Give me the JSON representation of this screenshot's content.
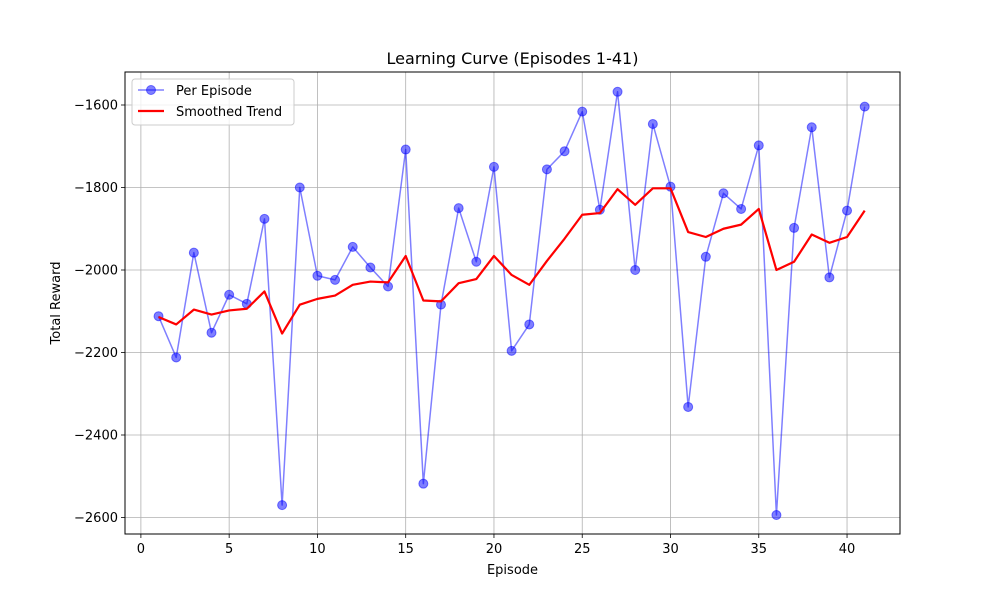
{
  "chart_data": {
    "type": "line",
    "title": "Learning Curve (Episodes 1-41)",
    "xlabel": "Episode",
    "ylabel": "Total Reward",
    "xlim": [
      -0.9,
      43.0
    ],
    "ylim": [
      -2640,
      -1520
    ],
    "xticks": [
      0,
      5,
      10,
      15,
      20,
      25,
      30,
      35,
      40
    ],
    "yticks": [
      -2600,
      -2400,
      -2200,
      -2000,
      -1800,
      -1600
    ],
    "grid": true,
    "legend_position": "top-left",
    "x": [
      1,
      2,
      3,
      4,
      5,
      6,
      7,
      8,
      9,
      10,
      11,
      12,
      13,
      14,
      15,
      16,
      17,
      18,
      19,
      20,
      21,
      22,
      23,
      24,
      25,
      26,
      27,
      28,
      29,
      30,
      31,
      32,
      33,
      34,
      35,
      36,
      37,
      38,
      39,
      40,
      41
    ],
    "series": [
      {
        "name": "Per Episode",
        "color": "#0000ff",
        "style": "line-with-circle-markers",
        "values": [
          -2112,
          -2212,
          -1958,
          -2152,
          -2060,
          -2082,
          -1876,
          -2570,
          -1800,
          -2014,
          -2024,
          -1944,
          -1994,
          -2040,
          -1708,
          -2518,
          -2084,
          -1850,
          -1980,
          -1750,
          -2196,
          -2132,
          -1756,
          -1712,
          -1616,
          -1854,
          -1568,
          -2000,
          -1646,
          -1798,
          -2332,
          -1968,
          -1814,
          -1852,
          -1698,
          -2594,
          -1898,
          -1654,
          -2018,
          -1856,
          -1604
        ]
      },
      {
        "name": "Smoothed Trend",
        "color": "#ff0000",
        "style": "line",
        "values": [
          -2114,
          -2132,
          -2096,
          -2108,
          -2098,
          -2094,
          -2052,
          -2154,
          -2084,
          -2070,
          -2062,
          -2036,
          -2028,
          -2030,
          -1966,
          -2074,
          -2076,
          -2032,
          -2022,
          -1966,
          -2012,
          -2036,
          -1978,
          -1924,
          -1866,
          -1862,
          -1804,
          -1842,
          -1802,
          -1802,
          -1908,
          -1920,
          -1900,
          -1890,
          -1852,
          -2000,
          -1980,
          -1914,
          -1934,
          -1920,
          -1856
        ]
      }
    ]
  }
}
